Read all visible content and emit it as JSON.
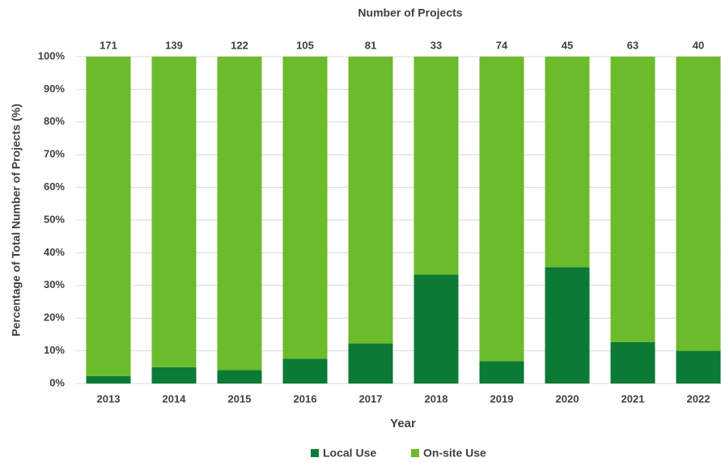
{
  "chart_data": {
    "type": "bar",
    "stacked": true,
    "annotation": "Number of Projects",
    "project_counts": [
      171,
      139,
      122,
      105,
      81,
      33,
      74,
      45,
      63,
      40
    ],
    "x_label": "Year",
    "y_label": "Percentage of Total Number of Projects (%)",
    "categories": [
      "2013",
      "2014",
      "2015",
      "2016",
      "2017",
      "2018",
      "2019",
      "2020",
      "2021",
      "2022"
    ],
    "series": [
      {
        "name": "Local Use",
        "color": "#0b7a36",
        "values": [
          2.3,
          5.0,
          4.1,
          7.6,
          12.3,
          33.3,
          6.8,
          35.6,
          12.7,
          10.0
        ]
      },
      {
        "name": "On-site Use",
        "color": "#6cbb2b",
        "values": [
          97.7,
          95.0,
          95.9,
          92.4,
          87.7,
          66.7,
          93.2,
          64.4,
          87.3,
          90.0
        ]
      }
    ],
    "ylim": [
      0,
      100
    ],
    "yticks": [
      {
        "value": 0,
        "label": "0%"
      },
      {
        "value": 10,
        "label": "10%"
      },
      {
        "value": 20,
        "label": "20%"
      },
      {
        "value": 30,
        "label": "30%"
      },
      {
        "value": 40,
        "label": "40%"
      },
      {
        "value": 50,
        "label": "50%"
      },
      {
        "value": 60,
        "label": "60%"
      },
      {
        "value": 70,
        "label": "70%"
      },
      {
        "value": 80,
        "label": "80%"
      },
      {
        "value": 90,
        "label": "90%"
      },
      {
        "value": 100,
        "label": "100%"
      }
    ],
    "grid": true,
    "legend": "bottom"
  }
}
